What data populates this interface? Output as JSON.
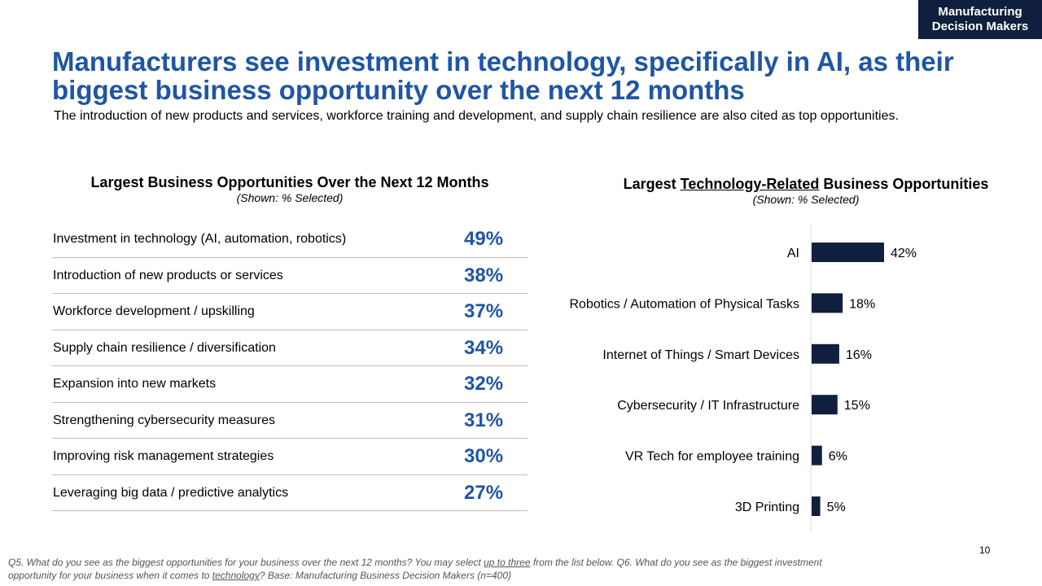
{
  "tag": {
    "line1": "Manufacturing",
    "line2": "Decision Makers"
  },
  "title": "Manufacturers see investment in technology, specifically in AI, as their biggest business opportunity over the next 12 months",
  "subtitle": "The introduction of new products and services, workforce training and development, and supply chain resilience are also cited as top opportunities.",
  "left_panel": {
    "heading": "Largest Business Opportunities Over the Next 12 Months",
    "subheading": "(Shown: % Selected)",
    "rows": [
      {
        "label": "Investment in technology (AI, automation, robotics)",
        "value": "49%"
      },
      {
        "label": "Introduction of new products or services",
        "value": "38%"
      },
      {
        "label": "Workforce development / upskilling",
        "value": "37%"
      },
      {
        "label": "Supply chain resilience / diversification",
        "value": "34%"
      },
      {
        "label": "Expansion into new markets",
        "value": "32%"
      },
      {
        "label": "Strengthening cybersecurity measures",
        "value": "31%"
      },
      {
        "label": "Improving risk management strategies",
        "value": "30%"
      },
      {
        "label": "Leveraging big data / predictive analytics",
        "value": "27%"
      }
    ]
  },
  "right_panel": {
    "heading_pre": "Largest ",
    "heading_underlined": "Technology-Related",
    "heading_post": " Business Opportunities",
    "subheading": "(Shown: % Selected)"
  },
  "chart_data": {
    "type": "bar",
    "orientation": "horizontal",
    "title": "Largest Technology-Related Business Opportunities",
    "subtitle": "(Shown: % Selected)",
    "categories": [
      "AI",
      "Robotics / Automation of Physical Tasks",
      "Internet of Things / Smart Devices",
      "Cybersecurity / IT Infrastructure",
      "VR Tech for employee training",
      "3D Printing"
    ],
    "values": [
      42,
      18,
      16,
      15,
      6,
      5
    ],
    "value_suffix": "%",
    "bar_color": "#0f1f3d",
    "xlim": [
      0,
      100
    ]
  },
  "page_number": "10",
  "footnote": {
    "part1": "Q5. What do you see as the biggest opportunities for your business over the next 12 months? You may select ",
    "underline1": "up to three",
    "part2": " from the list below. Q6. What do you see as the biggest investment opportunity for your business when it comes to ",
    "underline2": "technology",
    "part3": "? Base: Manufacturing Business Decision Makers  (n=400)"
  },
  "colors": {
    "title": "#1f56a3",
    "accent_dark": "#0f1f3d",
    "divider": "#bdbdbd"
  }
}
